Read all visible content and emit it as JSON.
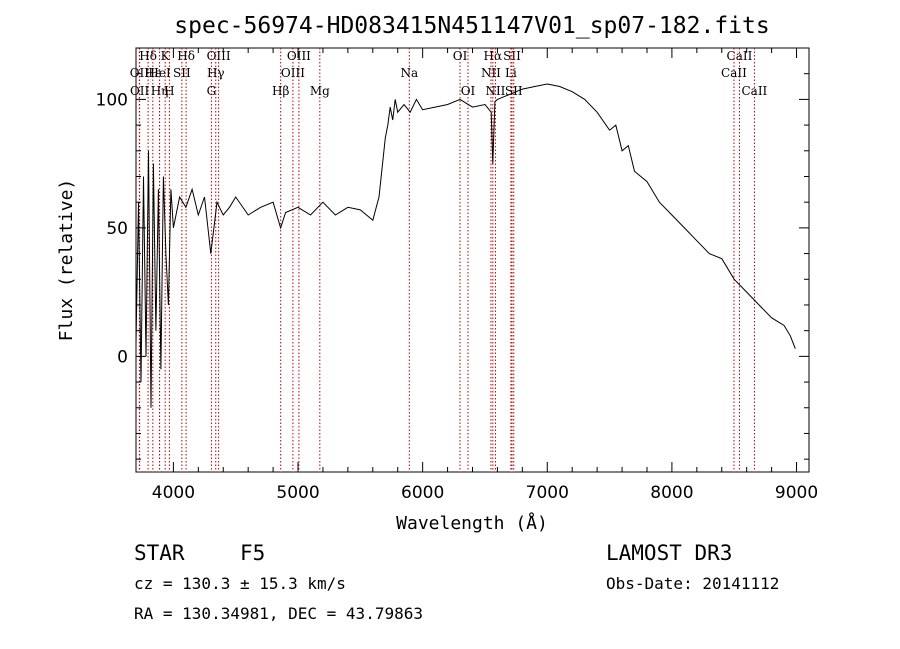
{
  "chart_data": {
    "type": "line",
    "title": "spec-56974-HD083415N451147V01_sp07-182.fits",
    "xlabel": "Wavelength (Å)",
    "ylabel": "Flux (relative)",
    "xlim": [
      3700,
      9100
    ],
    "ylim": [
      -45,
      120
    ],
    "xticks": [
      4000,
      5000,
      6000,
      7000,
      8000,
      9000
    ],
    "yticks": [
      0,
      50,
      100
    ],
    "series": [
      {
        "name": "flux",
        "x": [
          3700,
          3720,
          3740,
          3760,
          3780,
          3800,
          3820,
          3840,
          3860,
          3880,
          3900,
          3920,
          3940,
          3960,
          3980,
          4000,
          4050,
          4100,
          4150,
          4200,
          4250,
          4300,
          4350,
          4400,
          4450,
          4500,
          4600,
          4700,
          4800,
          4860,
          4900,
          5000,
          5100,
          5200,
          5300,
          5400,
          5500,
          5600,
          5650,
          5700,
          5720,
          5740,
          5760,
          5780,
          5800,
          5850,
          5900,
          5950,
          6000,
          6100,
          6200,
          6300,
          6400,
          6500,
          6550,
          6563,
          6580,
          6600,
          6650,
          6700,
          6750,
          6800,
          6900,
          7000,
          7100,
          7200,
          7300,
          7400,
          7500,
          7550,
          7600,
          7650,
          7700,
          7800,
          7900,
          8000,
          8100,
          8200,
          8300,
          8400,
          8500,
          8600,
          8700,
          8800,
          8900,
          8950,
          8990
        ],
        "y": [
          5,
          60,
          -10,
          70,
          0,
          80,
          -20,
          75,
          10,
          65,
          -5,
          70,
          40,
          20,
          65,
          50,
          62,
          58,
          65,
          55,
          62,
          40,
          60,
          55,
          58,
          62,
          55,
          58,
          60,
          50,
          56,
          58,
          55,
          60,
          55,
          58,
          57,
          53,
          62,
          85,
          90,
          97,
          92,
          100,
          95,
          98,
          95,
          100,
          96,
          97,
          98,
          100,
          97,
          98,
          95,
          75,
          99,
          100,
          101,
          102,
          103,
          104,
          105,
          106,
          105,
          103,
          100,
          95,
          88,
          90,
          80,
          82,
          72,
          68,
          60,
          55,
          50,
          45,
          40,
          38,
          30,
          25,
          20,
          15,
          12,
          8,
          3
        ]
      }
    ],
    "line_markers": [
      {
        "label": "Hδ",
        "x": 3797,
        "row": 0
      },
      {
        "label": "OII",
        "x": 3727,
        "row": 1
      },
      {
        "label": "OII",
        "x": 3729,
        "row": 2
      },
      {
        "label": "Hε",
        "x": 3835,
        "row": 1
      },
      {
        "label": "Hη",
        "x": 3889,
        "row": 2
      },
      {
        "label": "K",
        "x": 3934,
        "row": 0
      },
      {
        "label": "HeI",
        "x": 3889,
        "row": 1
      },
      {
        "label": "SII",
        "x": 4068,
        "row": 1
      },
      {
        "label": "H",
        "x": 3968,
        "row": 2
      },
      {
        "label": "Hδ",
        "x": 4102,
        "row": 0
      },
      {
        "label": "OIII",
        "x": 4363,
        "row": 0
      },
      {
        "label": "Hγ",
        "x": 4340,
        "row": 1
      },
      {
        "label": "G",
        "x": 4305,
        "row": 2
      },
      {
        "label": "Hβ",
        "x": 4861,
        "row": 2
      },
      {
        "label": "OIII",
        "x": 4959,
        "row": 1
      },
      {
        "label": "OIII",
        "x": 5007,
        "row": 0
      },
      {
        "label": "Mg",
        "x": 5175,
        "row": 2
      },
      {
        "label": "Na",
        "x": 5893,
        "row": 1
      },
      {
        "label": "OI",
        "x": 6300,
        "row": 0
      },
      {
        "label": "OI",
        "x": 6364,
        "row": 2
      },
      {
        "label": "Hα",
        "x": 6563,
        "row": 0
      },
      {
        "label": "NII",
        "x": 6548,
        "row": 1
      },
      {
        "label": "NII",
        "x": 6584,
        "row": 2
      },
      {
        "label": "SII",
        "x": 6717,
        "row": 0
      },
      {
        "label": "Li",
        "x": 6708,
        "row": 1
      },
      {
        "label": "SII",
        "x": 6731,
        "row": 2
      },
      {
        "label": "CaII",
        "x": 8542,
        "row": 0
      },
      {
        "label": "CaII",
        "x": 8498,
        "row": 1
      },
      {
        "label": "CaII",
        "x": 8662,
        "row": 2
      }
    ]
  },
  "info": {
    "object_type": "STAR",
    "subclass": "F5",
    "survey": "LAMOST DR3",
    "cz": "cz = 130.3 ± 15.3 km/s",
    "obs_date": "Obs-Date: 20141112",
    "coords": "RA = 130.34981, DEC =  43.79863"
  }
}
